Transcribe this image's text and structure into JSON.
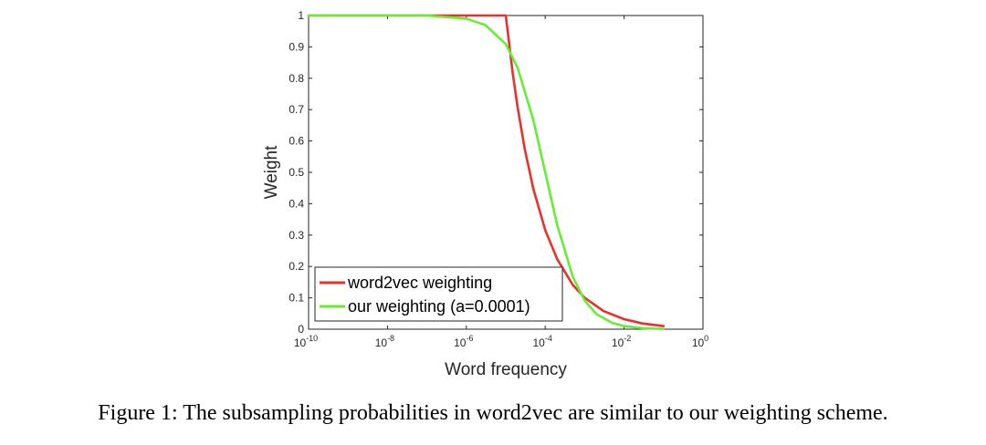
{
  "chart_data": {
    "type": "line",
    "xlabel": "Word frequency",
    "ylabel": "Weight",
    "x_scale": "log",
    "xlim": [
      1e-10,
      1
    ],
    "ylim": [
      0,
      1
    ],
    "x_ticks": [
      {
        "base": "10",
        "exp": "-10"
      },
      {
        "base": "10",
        "exp": "-8"
      },
      {
        "base": "10",
        "exp": "-6"
      },
      {
        "base": "10",
        "exp": "-4"
      },
      {
        "base": "10",
        "exp": "-2"
      },
      {
        "base": "10",
        "exp": "0"
      }
    ],
    "y_ticks": [
      "0",
      "0.1",
      "0.2",
      "0.3",
      "0.4",
      "0.5",
      "0.6",
      "0.7",
      "0.8",
      "0.9",
      "1"
    ],
    "legend_position": "bottom-left",
    "grid": false,
    "series": [
      {
        "name": "word2vec weighting",
        "color": "#e8312a",
        "x": [
          1e-10,
          1e-08,
          1e-06,
          1e-05,
          1.5e-05,
          2e-05,
          3e-05,
          5e-05,
          0.0001,
          0.0002,
          0.0005,
          0.001,
          0.003,
          0.01,
          0.03,
          0.1
        ],
        "y": [
          1,
          1,
          1,
          1,
          0.816,
          0.707,
          0.577,
          0.447,
          0.316,
          0.224,
          0.141,
          0.1,
          0.058,
          0.032,
          0.018,
          0.01
        ]
      },
      {
        "name": "our weighting (a=0.0001)",
        "color": "#66ee33",
        "x": [
          1e-10,
          1e-08,
          1e-07,
          1e-06,
          3e-06,
          1e-05,
          2e-05,
          5e-05,
          0.0001,
          0.0002,
          0.0005,
          0.001,
          0.002,
          0.005,
          0.01,
          0.03,
          0.1
        ],
        "y": [
          1,
          1,
          1,
          0.99,
          0.97,
          0.909,
          0.833,
          0.667,
          0.5,
          0.333,
          0.167,
          0.091,
          0.048,
          0.02,
          0.01,
          0.003,
          0.001
        ]
      }
    ]
  },
  "caption": "Figure 1: The subsampling probabilities in word2vec are similar to our weighting scheme."
}
